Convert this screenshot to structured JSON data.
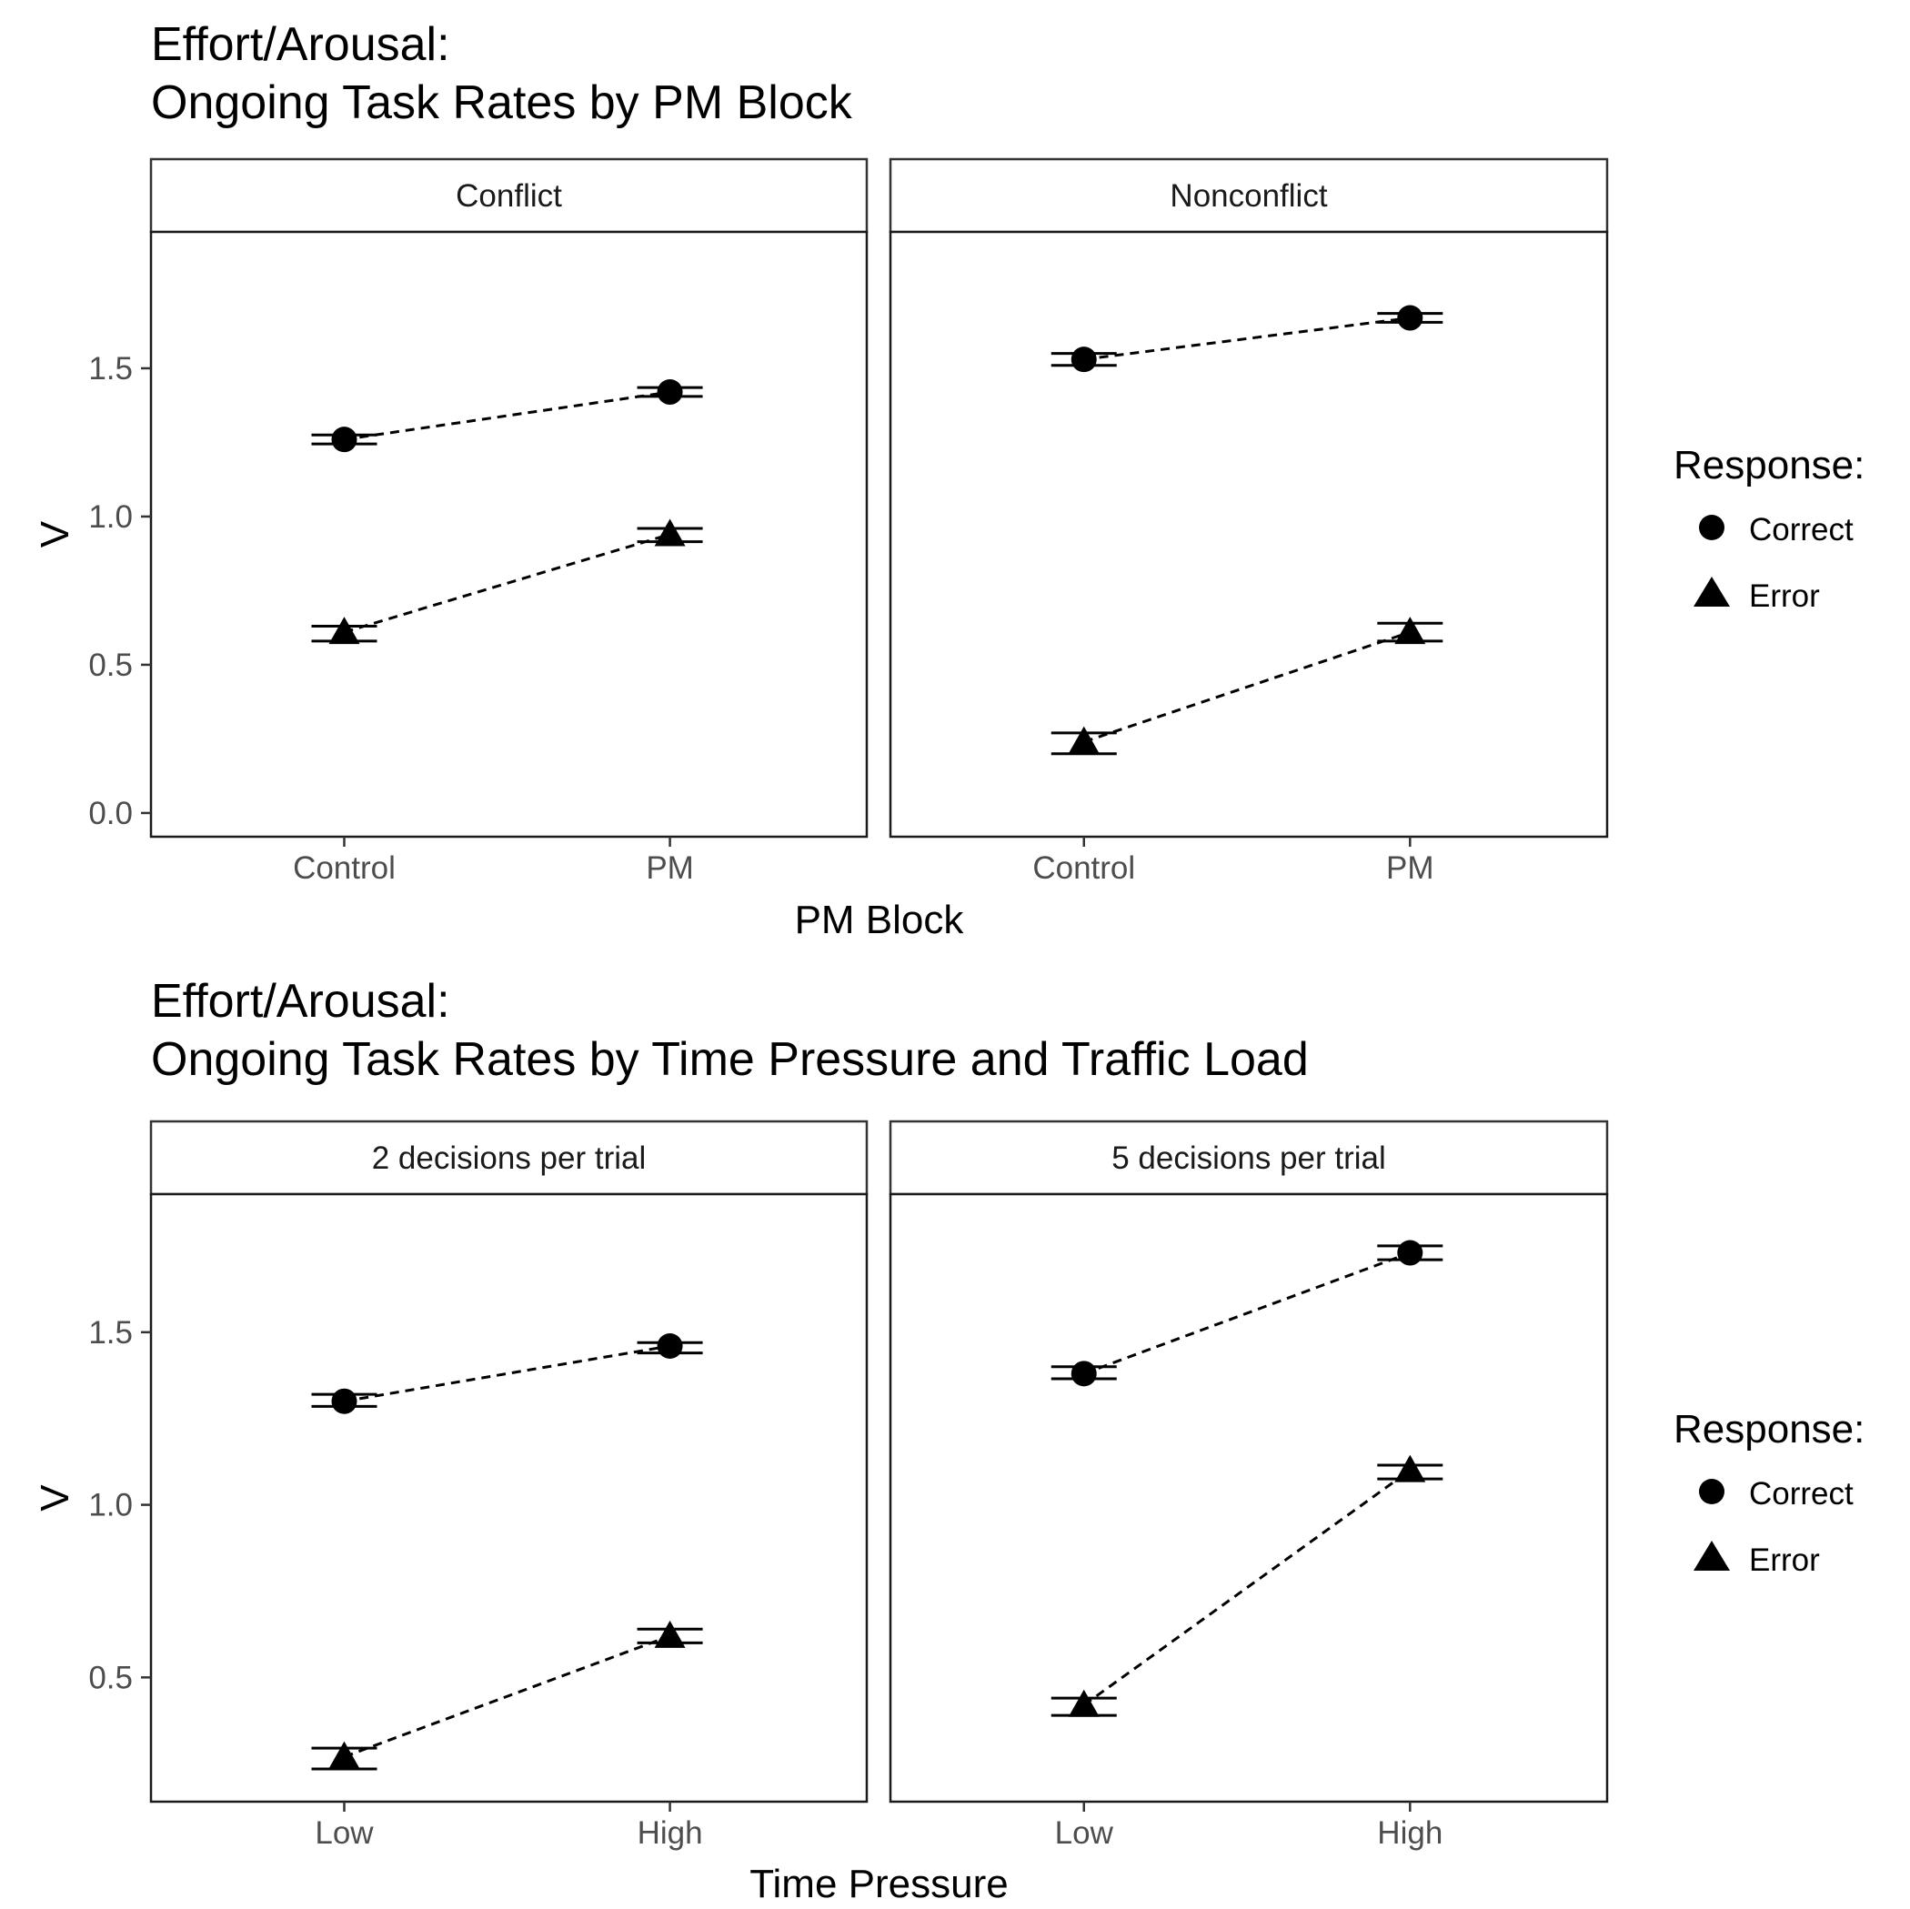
{
  "chart_data": [
    {
      "type": "line",
      "title": "Effort/Arousal:",
      "subtitle": "Ongoing Task Rates by PM Block",
      "xlabel": "PM Block",
      "ylabel": "V",
      "categories": [
        "Control",
        "PM"
      ],
      "ylim": [
        -0.08,
        1.96
      ],
      "yticks": [
        0.0,
        0.5,
        1.0,
        1.5
      ],
      "ytick_labels": [
        "0.0",
        "0.5",
        "1.0",
        "1.5"
      ],
      "legend": {
        "title": "Response:",
        "placement": "right",
        "entries": [
          {
            "label": "Correct",
            "shape": "circle"
          },
          {
            "label": "Error",
            "shape": "triangle"
          }
        ]
      },
      "panels": [
        {
          "label": "Conflict",
          "series": [
            {
              "response": "Correct",
              "values": [
                1.26,
                1.42
              ],
              "err_low": [
                1.245,
                1.405
              ],
              "err_high": [
                1.275,
                1.435
              ]
            },
            {
              "response": "Error",
              "values": [
                0.61,
                0.94
              ],
              "err_low": [
                0.58,
                0.915
              ],
              "err_high": [
                0.63,
                0.96
              ]
            }
          ]
        },
        {
          "label": "Nonconflict",
          "series": [
            {
              "response": "Correct",
              "values": [
                1.53,
                1.67
              ],
              "err_low": [
                1.51,
                1.655
              ],
              "err_high": [
                1.55,
                1.685
              ]
            },
            {
              "response": "Error",
              "values": [
                0.24,
                0.61
              ],
              "err_low": [
                0.2,
                0.58
              ],
              "err_high": [
                0.27,
                0.64
              ]
            }
          ]
        }
      ]
    },
    {
      "type": "line",
      "title": "Effort/Arousal:",
      "subtitle": "Ongoing Task Rates by Time Pressure and Traffic Load",
      "xlabel": "Time Pressure",
      "ylabel": "V",
      "categories": [
        "Low",
        "High"
      ],
      "ylim": [
        0.14,
        1.9
      ],
      "yticks": [
        0.5,
        1.0,
        1.5
      ],
      "ytick_labels": [
        "0.5",
        "1.0",
        "1.5"
      ],
      "legend": {
        "title": "Response:",
        "placement": "right",
        "entries": [
          {
            "label": "Correct",
            "shape": "circle"
          },
          {
            "label": "Error",
            "shape": "triangle"
          }
        ]
      },
      "panels": [
        {
          "label": "2 decisions per trial",
          "series": [
            {
              "response": "Correct",
              "values": [
                1.3,
                1.46
              ],
              "err_low": [
                1.285,
                1.44
              ],
              "err_high": [
                1.32,
                1.47
              ]
            },
            {
              "response": "Error",
              "values": [
                0.27,
                0.62
              ],
              "err_low": [
                0.235,
                0.6
              ],
              "err_high": [
                0.295,
                0.64
              ]
            }
          ]
        },
        {
          "label": "5 decisions per trial",
          "series": [
            {
              "response": "Correct",
              "values": [
                1.38,
                1.73
              ],
              "err_low": [
                1.365,
                1.71
              ],
              "err_high": [
                1.4,
                1.75
              ]
            },
            {
              "response": "Error",
              "values": [
                0.42,
                1.1
              ],
              "err_low": [
                0.39,
                1.075
              ],
              "err_high": [
                0.44,
                1.115
              ]
            }
          ]
        }
      ]
    }
  ]
}
